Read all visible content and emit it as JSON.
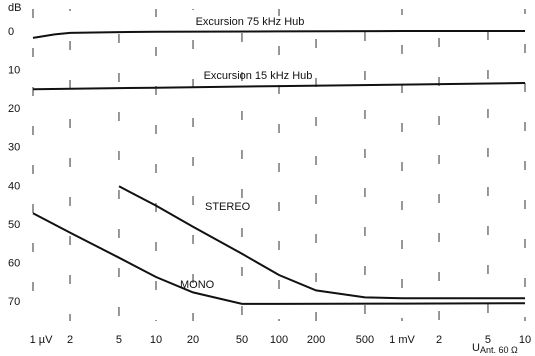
{
  "chart_data": {
    "type": "line",
    "y_label": "dB",
    "x_label": "U",
    "x_label_subscript": "Ant. 60 Ω",
    "x_log": true,
    "y_inverted": true,
    "xlim": [
      1,
      10000
    ],
    "ylim": [
      -6,
      77
    ],
    "xticks": [
      {
        "value": 1,
        "label": "1 µV"
      },
      2,
      5,
      10,
      20,
      50,
      100,
      200,
      500,
      {
        "value": 1000,
        "label": "1 mV"
      },
      {
        "value": 2000,
        "label": "2"
      },
      {
        "value": 5000,
        "label": "5"
      },
      {
        "value": 10000,
        "label": "10"
      }
    ],
    "yticks": [
      0,
      10,
      20,
      30,
      40,
      50,
      60,
      70
    ],
    "grid": true,
    "series": [
      {
        "name": "Excursion 75 kHz Hub",
        "color": "#111111",
        "x": [
          1,
          1.5,
          2,
          5,
          10,
          100,
          1000,
          10000
        ],
        "values": [
          1.5,
          0.6,
          0.2,
          0,
          -0.1,
          -0.2,
          -0.3,
          -0.3
        ]
      },
      {
        "name": "Excursion 15 kHz Hub",
        "color": "#111111",
        "x": [
          1,
          10,
          100,
          1000,
          10000
        ],
        "values": [
          14.8,
          14.4,
          14,
          13.6,
          13.2
        ]
      },
      {
        "name": "STEREO",
        "color": "#111111",
        "x": [
          5,
          10,
          20,
          50,
          100,
          200,
          500,
          1000,
          10000
        ],
        "values": [
          40,
          45,
          50.5,
          57.5,
          63,
          67,
          68.8,
          69,
          69
        ]
      },
      {
        "name": "MONO",
        "color": "#111111",
        "x": [
          1,
          2,
          5,
          10,
          20,
          50,
          100,
          1000,
          10000
        ],
        "values": [
          47,
          52,
          58.5,
          63.5,
          67.5,
          70.5,
          70.5,
          70.4,
          70.3
        ]
      }
    ]
  }
}
